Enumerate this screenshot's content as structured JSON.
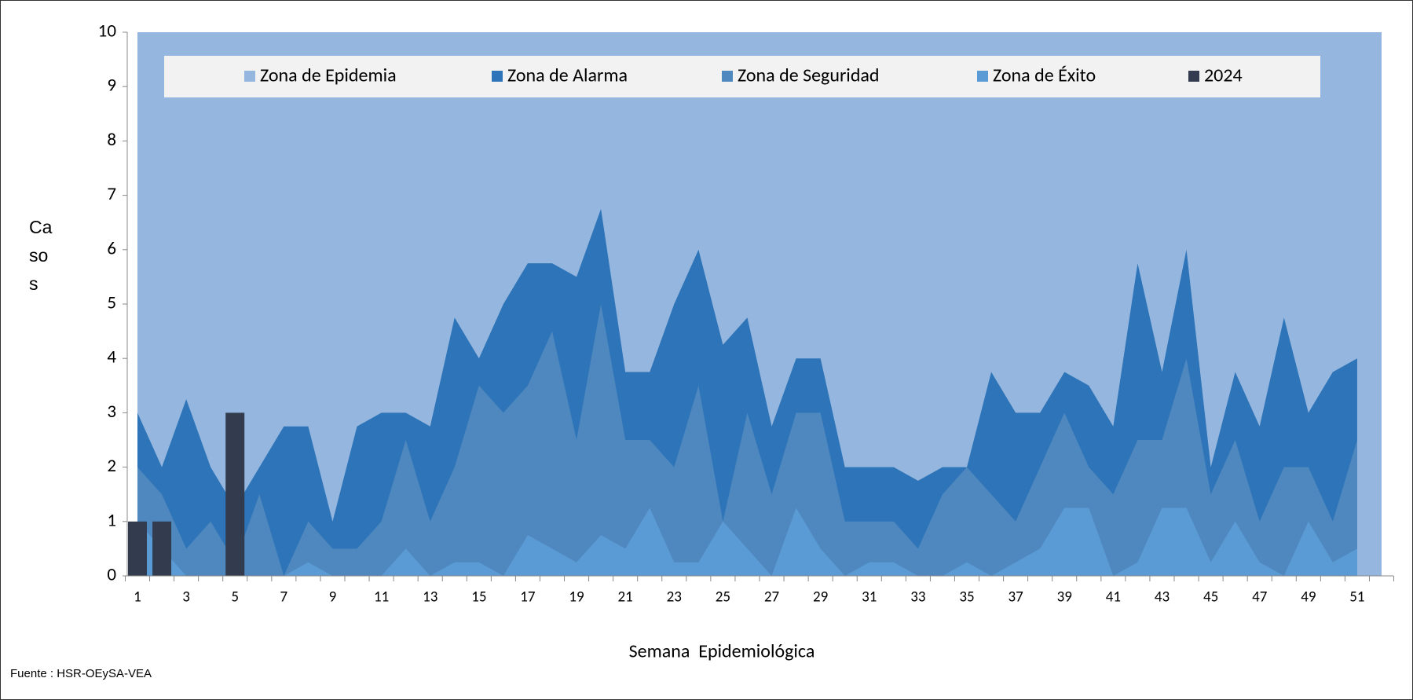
{
  "chart_data": {
    "type": "area",
    "ylabel": "Casos",
    "xlabel": "Semana  Epidemiológica",
    "source": "Fuente : HSR-OEySA-VEA",
    "categories": [
      "1",
      null,
      "3",
      null,
      "5",
      null,
      "7",
      null,
      "9",
      null,
      "11",
      null,
      "13",
      null,
      "15",
      null,
      "17",
      null,
      "19",
      null,
      "21",
      null,
      "23",
      null,
      "25",
      null,
      "27",
      null,
      "29",
      null,
      "31",
      null,
      "33",
      null,
      "35",
      null,
      "37",
      null,
      "39",
      null,
      "41",
      null,
      "43",
      null,
      "45",
      null,
      "47",
      null,
      "49",
      null,
      "51",
      null
    ],
    "ylim": [
      0,
      10
    ],
    "yticks": [
      0,
      1,
      2,
      3,
      4,
      5,
      6,
      7,
      8,
      9,
      10
    ],
    "legend": "top",
    "series": [
      {
        "name": "Zona de Epidemia",
        "color": "#95b7df",
        "values": [
          10,
          10,
          10,
          10,
          10,
          10,
          10,
          10,
          10,
          10,
          10,
          10,
          10,
          10,
          10,
          10,
          10,
          10,
          10,
          10,
          10,
          10,
          10,
          10,
          10,
          10,
          10,
          10,
          10,
          10,
          10,
          10,
          10,
          10,
          10,
          10,
          10,
          10,
          10,
          10,
          10,
          10,
          10,
          10,
          10,
          10,
          10,
          10,
          10,
          10,
          10,
          10
        ]
      },
      {
        "name": "Zona de Alarma",
        "color": "#2e74b8",
        "values": [
          3,
          2,
          3.25,
          2,
          1.25,
          2,
          2.75,
          2.75,
          1,
          2.75,
          3,
          3,
          2.75,
          4.75,
          4,
          5,
          5.75,
          5.75,
          5.5,
          6.75,
          3.75,
          3.75,
          5,
          6,
          4.25,
          4.75,
          2.75,
          4,
          4,
          2,
          2,
          2,
          1.75,
          2,
          2,
          3.75,
          3,
          3,
          3.75,
          3.5,
          2.75,
          5.75,
          3.75,
          6,
          2,
          3.75,
          2.75,
          4.75,
          3,
          3.75,
          4,
          null
        ]
      },
      {
        "name": "Zona de Seguridad",
        "color": "#4f88bf",
        "values": [
          2,
          1.5,
          0.5,
          1,
          0.25,
          1.5,
          0,
          1,
          0.5,
          0.5,
          1,
          2.5,
          1,
          2,
          3.5,
          3,
          3.5,
          4.5,
          2.5,
          5,
          2.5,
          2.5,
          2,
          3.5,
          1,
          3,
          1.5,
          3,
          3,
          1,
          1,
          1,
          0.5,
          1.5,
          2,
          1.5,
          1,
          2,
          3,
          2,
          1.5,
          2.5,
          2.5,
          4,
          1.5,
          2.5,
          1,
          2,
          2,
          1,
          2.5,
          null
        ]
      },
      {
        "name": "Zona de Éxito",
        "color": "#5b9bd5",
        "values": [
          1,
          0.5,
          0,
          0,
          0,
          0,
          0,
          0.25,
          0,
          0,
          0,
          0.5,
          0,
          0.25,
          0.25,
          0,
          0.75,
          0.5,
          0.25,
          0.75,
          0.5,
          1.25,
          0.25,
          0.25,
          1,
          0.5,
          0,
          1.25,
          0.5,
          0,
          0.25,
          0.25,
          0,
          0,
          0.25,
          0,
          0.25,
          0.5,
          1.25,
          1.25,
          0,
          0.25,
          1.25,
          1.25,
          0.25,
          1,
          0.25,
          0,
          1,
          0.25,
          0.5,
          null
        ]
      },
      {
        "name": "2024",
        "color": "#323c4e",
        "chart": "bar",
        "values": [
          1,
          1,
          null,
          null,
          3,
          null,
          null,
          null,
          null,
          null,
          null,
          null,
          null,
          null,
          null,
          null,
          null,
          null,
          null,
          null,
          null,
          null,
          null,
          null,
          null,
          null,
          null,
          null,
          null,
          null,
          null,
          null,
          null,
          null,
          null,
          null,
          null,
          null,
          null,
          null,
          null,
          null,
          null,
          null,
          null,
          null,
          null,
          null,
          null,
          null,
          null,
          null
        ]
      }
    ]
  }
}
